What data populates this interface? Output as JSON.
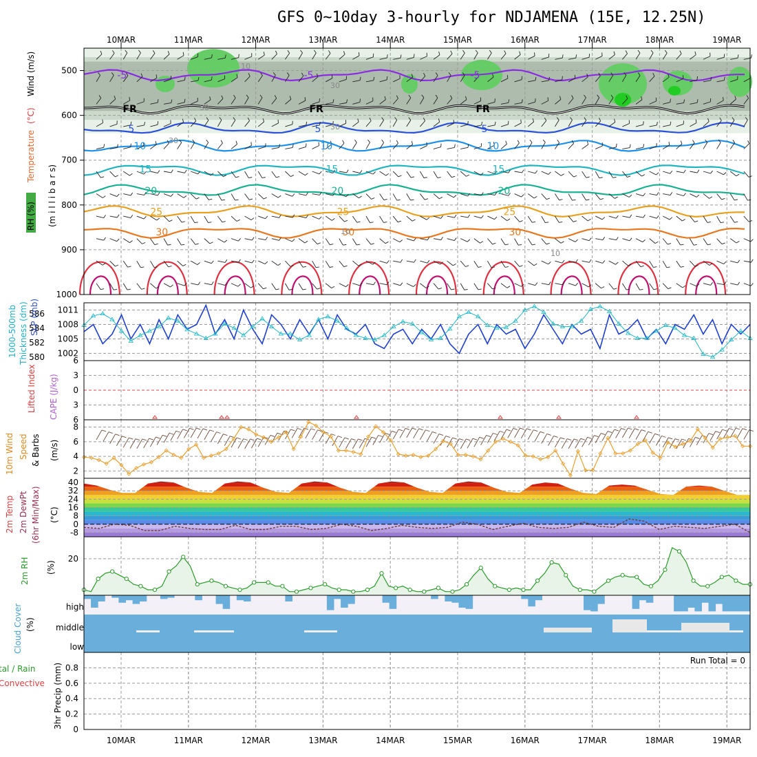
{
  "header": {
    "title": "GFS 0~10day 3-hourly for NDJAMENA (15E, 12.25N)",
    "run_total": "Run Total = 0"
  },
  "colors": {
    "rh_green": "#66cc66",
    "rh_dark": "#9aaa9a",
    "fr_line": "#000000",
    "temp_purple": "#8a2be2",
    "slp_blue": "#1f3fcf",
    "thickness_cyan": "#22b8c8",
    "wind_orange": "#e8a030",
    "rh2m_green": "#2a9a2a",
    "cloud_blue": "#6aaedb",
    "lifted_red": "#e04040",
    "cape_purple": "#b060d0"
  },
  "chart_data": [
    {
      "type": "heatmap",
      "panel": "upper-air",
      "x_dates": [
        "10MAR",
        "11MAR",
        "12MAR",
        "13MAR",
        "14MAR",
        "15MAR",
        "16MAR",
        "17MAR",
        "18MAR",
        "19MAR"
      ],
      "y_ticks": [
        500,
        600,
        700,
        800,
        900,
        1000
      ],
      "ylim": [
        1000,
        450
      ],
      "temperature_contours": [
        {
          "label": "-5",
          "level": 510,
          "color": "#8a2be2"
        },
        {
          "label": "FR",
          "level": 585,
          "color": "#000000"
        },
        {
          "label": "5",
          "level": 630,
          "color": "#2a4fd8"
        },
        {
          "label": "10",
          "level": 668,
          "color": "#1e90e8"
        },
        {
          "label": "15",
          "level": 720,
          "color": "#20b4c0"
        },
        {
          "label": "20",
          "level": 768,
          "color": "#18b090"
        },
        {
          "label": "25",
          "level": 815,
          "color": "#e8a020"
        },
        {
          "label": "30",
          "level": 860,
          "color": "#e87820"
        }
      ],
      "rh_labels": [
        "10",
        "30"
      ]
    },
    {
      "type": "line",
      "panel": "slp-thickness",
      "thickness_ticks": [
        580,
        582,
        584,
        586
      ],
      "slp_ticks": [
        1002,
        1005,
        1008,
        1011
      ],
      "series": [
        {
          "name": "SLP",
          "unit": "mb",
          "values": [
            1006.5,
            1008,
            1004,
            1006,
            1010,
            1005,
            1008,
            1004,
            1009,
            1005,
            1010,
            1007,
            1008,
            1012,
            1006,
            1009,
            1005,
            1011,
            1007,
            1004,
            1010,
            1008,
            1005,
            1009,
            1006,
            1009,
            1005,
            1010,
            1007,
            1006,
            1008,
            1004,
            1003,
            1006,
            1007,
            1004,
            1007,
            1005,
            1008,
            1004,
            1002,
            1006,
            1008,
            1004,
            1008,
            1006,
            1007,
            1003,
            1006,
            1010,
            1007,
            1004,
            1008,
            1006,
            1007,
            1003,
            1010,
            1006,
            1007,
            1009,
            1005,
            1007,
            1004,
            1008,
            1007,
            1010,
            1006,
            1009,
            1004,
            1008,
            1006,
            1008
          ]
        },
        {
          "name": "Thickness",
          "unit": "dm",
          "values": [
            584.4,
            585.7,
            586.0,
            585.2,
            583.6,
            582.2,
            583.0,
            583.6,
            584.2,
            585.4,
            585.0,
            583.8,
            583.2,
            582.6,
            583.2,
            584.6,
            584.0,
            583.0,
            584.2,
            585.3,
            584.2,
            583.2,
            583.2,
            582.4,
            583.0,
            585.2,
            585.6,
            585.0,
            584.0,
            583.0,
            582.6,
            582.4,
            583.0,
            584.2,
            584.9,
            584.6,
            583.4,
            582.4,
            582.6,
            583.9,
            585.6,
            586.2,
            585.6,
            584.4,
            584.0,
            584.1,
            585.0,
            586.5,
            587.0,
            586.2,
            584.6,
            584.2,
            584.2,
            585.0,
            586.6,
            587.0,
            586.3,
            584.6,
            583.3,
            582.6,
            582.6,
            583.6,
            584.4,
            584.0,
            583.0,
            582.6,
            580.4,
            580.0,
            581.0,
            582.4,
            583.6,
            582.6
          ]
        }
      ]
    },
    {
      "type": "line",
      "panel": "lifted-cape",
      "lifted_ticks": [
        -6,
        -3,
        0,
        3,
        6
      ],
      "series": [
        {
          "name": "Lifted Index",
          "values": []
        },
        {
          "name": "CAPE",
          "values": []
        }
      ]
    },
    {
      "type": "line",
      "panel": "wind-10m",
      "y_ticks": [
        2,
        4,
        6,
        8
      ],
      "ylim": [
        1,
        9
      ],
      "series": [
        {
          "name": "Wind Speed",
          "unit": "m/s",
          "values": [
            3.9,
            3.8,
            3.5,
            3.0,
            3.8,
            2.8,
            1.6,
            2.4,
            2.9,
            3.2,
            3.9,
            4.8,
            4.2,
            3.8,
            5.0,
            5.6,
            3.8,
            4.1,
            4.4,
            5.0,
            6.4,
            8.0,
            7.7,
            7.0,
            6.6,
            6.0,
            6.6,
            7.3,
            5.0,
            6.7,
            8.7,
            8.2,
            7.3,
            6.7,
            4.8,
            4.8,
            4.6,
            4.3,
            6.7,
            8.1,
            7.3,
            6.2,
            4.3,
            4.1,
            4.2,
            3.9,
            4.1,
            5.0,
            6.1,
            5.7,
            4.2,
            4.2,
            4.0,
            3.6,
            4.8,
            6.0,
            6.4,
            6.0,
            5.5,
            4.1,
            4.0,
            3.6,
            3.9,
            4.8,
            3.0,
            1.4,
            4.7,
            2.1,
            2.1,
            4.4,
            6.5,
            4.4,
            4.4,
            4.8,
            5.7,
            6.2,
            4.5,
            3.8,
            5.9,
            5.3,
            5.7,
            6.1,
            7.7,
            6.5,
            5.2,
            6.4,
            6.6,
            6.8,
            5.4,
            5.4
          ]
        }
      ]
    },
    {
      "type": "area",
      "panel": "temperature-2m",
      "y_ticks": [
        -8,
        0,
        8,
        16,
        24,
        32,
        40
      ],
      "ylim": [
        -12,
        44
      ],
      "series": [
        {
          "name": "2m Temp",
          "unit": "°C",
          "values": [
            39,
            37,
            33,
            30,
            30,
            39,
            41,
            40,
            35,
            31,
            30,
            39,
            41,
            40,
            35,
            31,
            30,
            39,
            41,
            40,
            35,
            31,
            30,
            39,
            41,
            40,
            35,
            31,
            30,
            39,
            41,
            40,
            35,
            31,
            30,
            38,
            40,
            39,
            34,
            30,
            29,
            37,
            38,
            37,
            33,
            29,
            28,
            36,
            37,
            36,
            32,
            28,
            28
          ]
        },
        {
          "name": "2m DewPt",
          "unit": "°C",
          "values": [
            -3,
            -4,
            0,
            -1,
            -6,
            -6,
            -2,
            -4,
            -5,
            -5,
            -1,
            -5,
            -5,
            -2,
            -2,
            -5,
            -4,
            0,
            -2,
            -6,
            -4,
            -1,
            -3,
            -4,
            -3,
            2,
            0,
            -5,
            -2,
            1,
            -3,
            -4,
            -3,
            2,
            -2,
            -3,
            5,
            3,
            -5,
            -2,
            -3,
            -4,
            -2,
            0,
            -8
          ]
        }
      ]
    },
    {
      "type": "line",
      "panel": "rh-2m",
      "y_ticks": [
        20
      ],
      "ylim": [
        0,
        32
      ],
      "series": [
        {
          "name": "2m RH",
          "unit": "%",
          "values": [
            3,
            2,
            9,
            12,
            13,
            11,
            9,
            6,
            5,
            3,
            3,
            5,
            13,
            16,
            21,
            16,
            6,
            7,
            8,
            7,
            5,
            4,
            3,
            4,
            7,
            7,
            7,
            5,
            5,
            2,
            2,
            3,
            4,
            5,
            6,
            4,
            3,
            3,
            2,
            2,
            3,
            5,
            12,
            5,
            4,
            5,
            3,
            2,
            2,
            3,
            4,
            2,
            2,
            3,
            6,
            11,
            15,
            9,
            5,
            4,
            3,
            4,
            3,
            3,
            8,
            12,
            18,
            17,
            11,
            5,
            3,
            3,
            2,
            5,
            8,
            10,
            11,
            10,
            10,
            6,
            5,
            8,
            14,
            26,
            24,
            18,
            8,
            5,
            5,
            7,
            10,
            11,
            8,
            6,
            6
          ]
        }
      ]
    },
    {
      "type": "bar",
      "panel": "cloud-cover",
      "categories": [
        "high",
        "middle",
        "low"
      ],
      "ylabel": "Cloud Cover (%)"
    },
    {
      "type": "bar",
      "panel": "precip-3hr",
      "y_ticks": [
        0,
        0.2,
        0.4,
        0.6,
        0.8
      ],
      "ylim": [
        0,
        1
      ],
      "series": [
        {
          "name": "Total / Rain",
          "values": []
        },
        {
          "name": "Convective",
          "values": []
        }
      ]
    }
  ],
  "axes": {
    "dates": [
      "10MAR",
      "11MAR",
      "12MAR",
      "13MAR",
      "14MAR",
      "15MAR",
      "16MAR",
      "17MAR",
      "18MAR",
      "19MAR"
    ],
    "panel1_yticks": [
      "500",
      "600",
      "700",
      "800",
      "900",
      "1000"
    ],
    "panel2_left_yticks": [
      "586",
      "584",
      "582",
      "580"
    ],
    "panel2_right_yticks": [
      "1011",
      "1008",
      "1005",
      "1002"
    ],
    "panel3_yticks": [
      "6",
      "3",
      "0",
      "3",
      "6"
    ],
    "panel4_yticks": [
      "8",
      "6",
      "4",
      "2"
    ],
    "panel5_yticks": [
      "40",
      "32",
      "24",
      "16",
      "8",
      "0",
      "-8"
    ],
    "panel6_yticks": [
      "20"
    ],
    "panel7_cats": [
      "high",
      "middle",
      "low"
    ],
    "panel8_yticks": [
      "0.8",
      "0.6",
      "0.4",
      "0.2",
      "0"
    ]
  },
  "labels": {
    "p1_rh": "RH (%)",
    "p1_temp": "Temperature",
    "p1_temp_unit": "(°C)",
    "p1_wind": "Wind (m/s)",
    "p1_mb": "(m i l l i b a r s)",
    "p2_thick1": "1000-500mb",
    "p2_thick2": "Thickness (dm)",
    "p2_slp": "SLP (mb)",
    "p3_li": "Lifted Index",
    "p3_cape": "CAPE (J/kg)",
    "p4_a": "10m Wind",
    "p4_b": "Speed",
    "p4_c": "& Barbs",
    "p4_unit": "(m/s)",
    "p5_a": "2m Temp",
    "p5_b": "2m DewPt",
    "p5_c": "(6hr Min/Max)",
    "p5_unit": "(°C)",
    "p6_a": "2m RH",
    "p6_unit": "(%)",
    "p7_a": "Cloud Cover",
    "p7_unit": "(%)",
    "p8_a": "tal / Rain",
    "p8_b": "Convective",
    "p8_c": "3hr Precip (mm)"
  }
}
